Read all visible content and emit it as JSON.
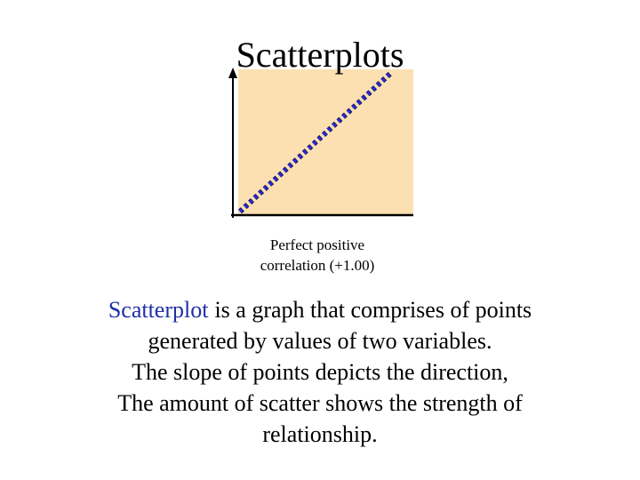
{
  "title": "Scatterplots",
  "caption": [
    "Perfect positive",
    "correlation (+1.00)"
  ],
  "body": {
    "term": "Scatterplot",
    "lines": [
      "is a graph that comprises of points",
      "generated by values of two variables.",
      "The slope of points depicts the direction,",
      "The amount of scatter shows the strength of",
      "relationship."
    ]
  }
}
